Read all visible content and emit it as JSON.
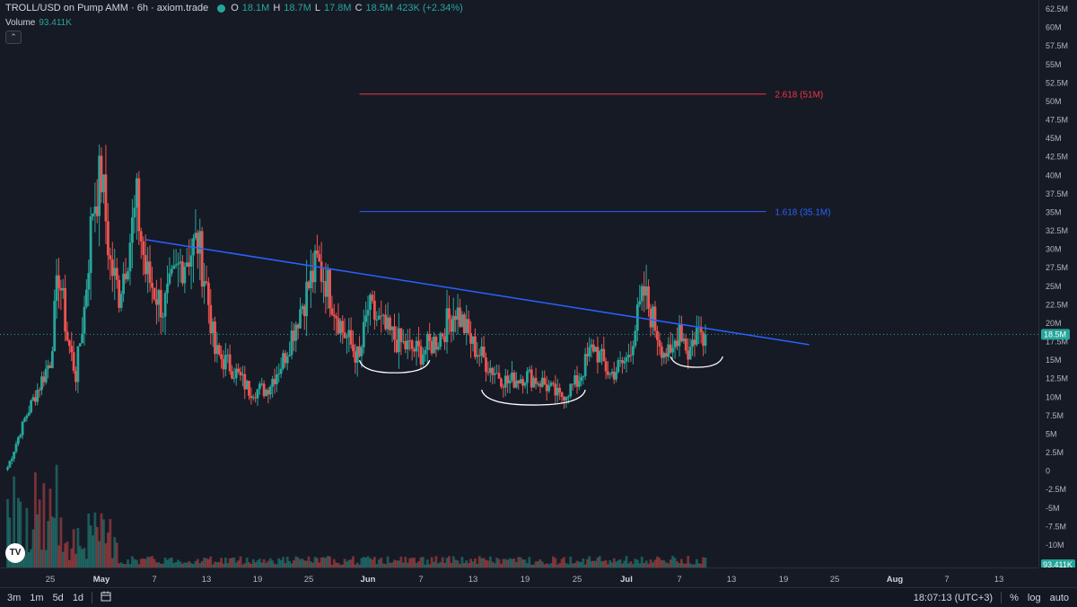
{
  "header": {
    "symbol_title": "TROLL/USD on Pump AMM · 6h · axiom.trade",
    "ohlc": [
      {
        "k": "O",
        "v": "18.1M"
      },
      {
        "k": "H",
        "v": "18.7M"
      },
      {
        "k": "L",
        "v": "17.8M"
      },
      {
        "k": "C",
        "v": "18.5M"
      },
      {
        "k": "",
        "v": "423K (+2.34%)"
      }
    ],
    "volume_label": "Volume",
    "volume_value": "93.411K",
    "collapse_glyph": "⌃"
  },
  "price_axis": {
    "labels": [
      "62.5M",
      "60M",
      "57.5M",
      "55M",
      "52.5M",
      "50M",
      "47.5M",
      "45M",
      "42.5M",
      "40M",
      "37.5M",
      "35M",
      "32.5M",
      "30M",
      "27.5M",
      "25M",
      "22.5M",
      "20M",
      "17.5M",
      "15M",
      "12.5M",
      "10M",
      "7.5M",
      "5M",
      "2.5M",
      "0",
      "-2.5M",
      "-5M",
      "-7.5M",
      "-10M"
    ],
    "current_price_badge": "18.5M",
    "current_volume_badge": "93.411K"
  },
  "time_axis": {
    "labels": [
      "25",
      "May",
      "7",
      "13",
      "19",
      "25",
      "Jun",
      "7",
      "13",
      "19",
      "25",
      "Jul",
      "7",
      "13",
      "19",
      "25",
      "Aug",
      "7",
      "13"
    ]
  },
  "bottom_bar": {
    "intervals": [
      "3m",
      "1m",
      "5d",
      "1d"
    ],
    "calendar_icon": "calendar-icon",
    "clock": "18:07:13 (UTC+3)",
    "percent": "%",
    "log": "log",
    "auto": "auto"
  },
  "colors": {
    "background": "#161a25",
    "up": "#26a69a",
    "down": "#ef5350",
    "trendline": "#2962ff",
    "fib_2618": "#f23645",
    "fib_1618": "#2962ff",
    "annotation": "#ffffff"
  },
  "chart_data": {
    "type": "candlestick",
    "title": "TROLL/USD on Pump AMM · 6h · axiom.trade",
    "interval": "6h",
    "ylim": [
      -12500000,
      63750000
    ],
    "scale": "linear",
    "grid": false,
    "x_labels": [
      "25",
      "May",
      "7",
      "13",
      "19",
      "25",
      "Jun",
      "7",
      "13",
      "19",
      "25",
      "Jul",
      "7",
      "13",
      "19",
      "25",
      "Aug",
      "7",
      "13"
    ],
    "close_path_M": [
      {
        "x": "Apr 20",
        "y": 0.5
      },
      {
        "x": "Apr 22",
        "y": 7
      },
      {
        "x": "Apr 25",
        "y": 15
      },
      {
        "x": "Apr 26",
        "y": 27
      },
      {
        "x": "Apr 27",
        "y": 18
      },
      {
        "x": "Apr 28",
        "y": 13
      },
      {
        "x": "Apr 29",
        "y": 22
      },
      {
        "x": "Apr 30",
        "y": 36
      },
      {
        "x": "May 1",
        "y": 40
      },
      {
        "x": "May 2",
        "y": 28
      },
      {
        "x": "May 3",
        "y": 24
      },
      {
        "x": "May 5",
        "y": 36
      },
      {
        "x": "May 6",
        "y": 27
      },
      {
        "x": "May 8",
        "y": 22
      },
      {
        "x": "May 10",
        "y": 28
      },
      {
        "x": "May 12",
        "y": 31
      },
      {
        "x": "May 13",
        "y": 25
      },
      {
        "x": "May 14",
        "y": 16
      },
      {
        "x": "May 16",
        "y": 14
      },
      {
        "x": "May 18",
        "y": 11
      },
      {
        "x": "May 20",
        "y": 11
      },
      {
        "x": "May 22",
        "y": 15
      },
      {
        "x": "May 24",
        "y": 22
      },
      {
        "x": "May 26",
        "y": 28
      },
      {
        "x": "May 27",
        "y": 26
      },
      {
        "x": "May 29",
        "y": 19
      },
      {
        "x": "May 31",
        "y": 15
      },
      {
        "x": "Jun 1",
        "y": 22
      },
      {
        "x": "Jun 3",
        "y": 19
      },
      {
        "x": "Jun 5",
        "y": 17
      },
      {
        "x": "Jun 7",
        "y": 16
      },
      {
        "x": "Jun 9",
        "y": 18
      },
      {
        "x": "Jun 11",
        "y": 22
      },
      {
        "x": "Jun 13",
        "y": 17
      },
      {
        "x": "Jun 15",
        "y": 14
      },
      {
        "x": "Jun 17",
        "y": 12
      },
      {
        "x": "Jun 19",
        "y": 13
      },
      {
        "x": "Jun 21",
        "y": 12
      },
      {
        "x": "Jun 23",
        "y": 10
      },
      {
        "x": "Jun 25",
        "y": 12
      },
      {
        "x": "Jun 27",
        "y": 17
      },
      {
        "x": "Jun 29",
        "y": 13
      },
      {
        "x": "Jul 1",
        "y": 15
      },
      {
        "x": "Jul 3",
        "y": 24
      },
      {
        "x": "Jul 5",
        "y": 17
      },
      {
        "x": "Jul 6",
        "y": 15
      },
      {
        "x": "Jul 7",
        "y": 20
      },
      {
        "x": "Jul 8",
        "y": 16
      },
      {
        "x": "Jul 9",
        "y": 19
      },
      {
        "x": "Jul 10",
        "y": 18.5
      }
    ],
    "trendline": {
      "from": {
        "x": "May 6",
        "y": 31.3
      },
      "to": {
        "x": "Jul 22",
        "y": 17.1
      }
    },
    "fib_levels": [
      {
        "label": "2.618 (51M)",
        "value": 51,
        "color": "#f23645"
      },
      {
        "label": "1.618 (35.1M)",
        "value": 35.1,
        "color": "#2962ff"
      }
    ],
    "current_price": "18.5M",
    "volume_current": "93.411K"
  }
}
